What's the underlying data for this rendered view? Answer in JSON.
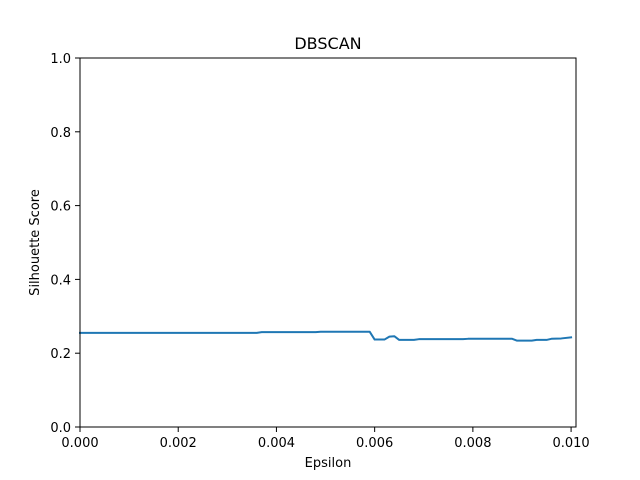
{
  "chart_data": {
    "type": "line",
    "title": "DBSCAN",
    "xlabel": "Epsilon",
    "ylabel": "Silhouette Score",
    "xlim": [
      0.0,
      0.0101
    ],
    "ylim": [
      0.0,
      1.0
    ],
    "xticks": [
      0.0,
      0.002,
      0.004,
      0.006,
      0.008,
      0.01
    ],
    "xtick_labels": [
      "0.000",
      "0.002",
      "0.004",
      "0.006",
      "0.008",
      "0.010"
    ],
    "yticks": [
      0.0,
      0.2,
      0.4,
      0.6,
      0.8,
      1.0
    ],
    "ytick_labels": [
      "0.0",
      "0.2",
      "0.4",
      "0.6",
      "0.8",
      "1.0"
    ],
    "grid": false,
    "series": [
      {
        "color": "#1f77b4",
        "x": [
          0.0,
          0.0001,
          0.0005,
          0.001,
          0.0015,
          0.002,
          0.0025,
          0.003,
          0.0035,
          0.0036,
          0.0037,
          0.004,
          0.0045,
          0.0048,
          0.0049,
          0.005,
          0.0055,
          0.0059,
          0.006,
          0.0062,
          0.0063,
          0.0064,
          0.0065,
          0.0066,
          0.0068,
          0.0069,
          0.007,
          0.0075,
          0.0078,
          0.0079,
          0.008,
          0.0085,
          0.0088,
          0.0089,
          0.009,
          0.0092,
          0.0093,
          0.0095,
          0.0096,
          0.0098,
          0.01
        ],
        "y": [
          0.255,
          0.255,
          0.255,
          0.255,
          0.255,
          0.255,
          0.255,
          0.255,
          0.255,
          0.255,
          0.257,
          0.257,
          0.257,
          0.257,
          0.258,
          0.258,
          0.258,
          0.258,
          0.237,
          0.237,
          0.245,
          0.246,
          0.236,
          0.236,
          0.236,
          0.238,
          0.238,
          0.238,
          0.238,
          0.239,
          0.239,
          0.239,
          0.239,
          0.234,
          0.234,
          0.234,
          0.236,
          0.236,
          0.239,
          0.24,
          0.243
        ]
      }
    ]
  }
}
